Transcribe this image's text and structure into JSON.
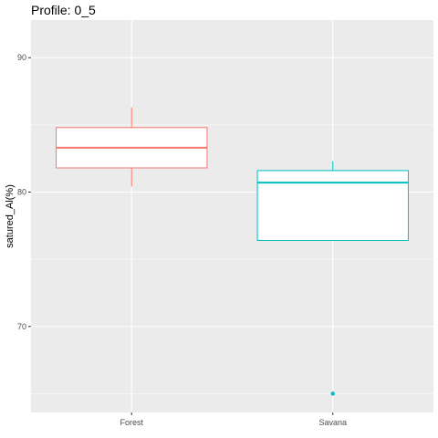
{
  "chart_data": {
    "type": "boxplot",
    "title": "Profile: 0_5",
    "xlabel": "",
    "ylabel": "satured_Al(%)",
    "ylim": [
      63.6,
      92.8
    ],
    "yticks": [
      70,
      80,
      90
    ],
    "grid": true,
    "legend": "none",
    "categories": [
      "Forest",
      "Savana"
    ],
    "boxes": [
      {
        "name": "Forest",
        "color": "#F8766D",
        "whisker_low": 80.4,
        "q1": 81.8,
        "median": 83.3,
        "q3": 84.8,
        "whisker_high": 86.3,
        "outliers": []
      },
      {
        "name": "Savana",
        "color": "#00BFC4",
        "whisker_low": 76.4,
        "q1": 76.4,
        "median": 80.7,
        "q3": 81.6,
        "whisker_high": 82.3,
        "outliers": [
          65.0
        ]
      }
    ],
    "panel_background": "#EBEBEB",
    "grid_color": "#FFFFFF"
  }
}
